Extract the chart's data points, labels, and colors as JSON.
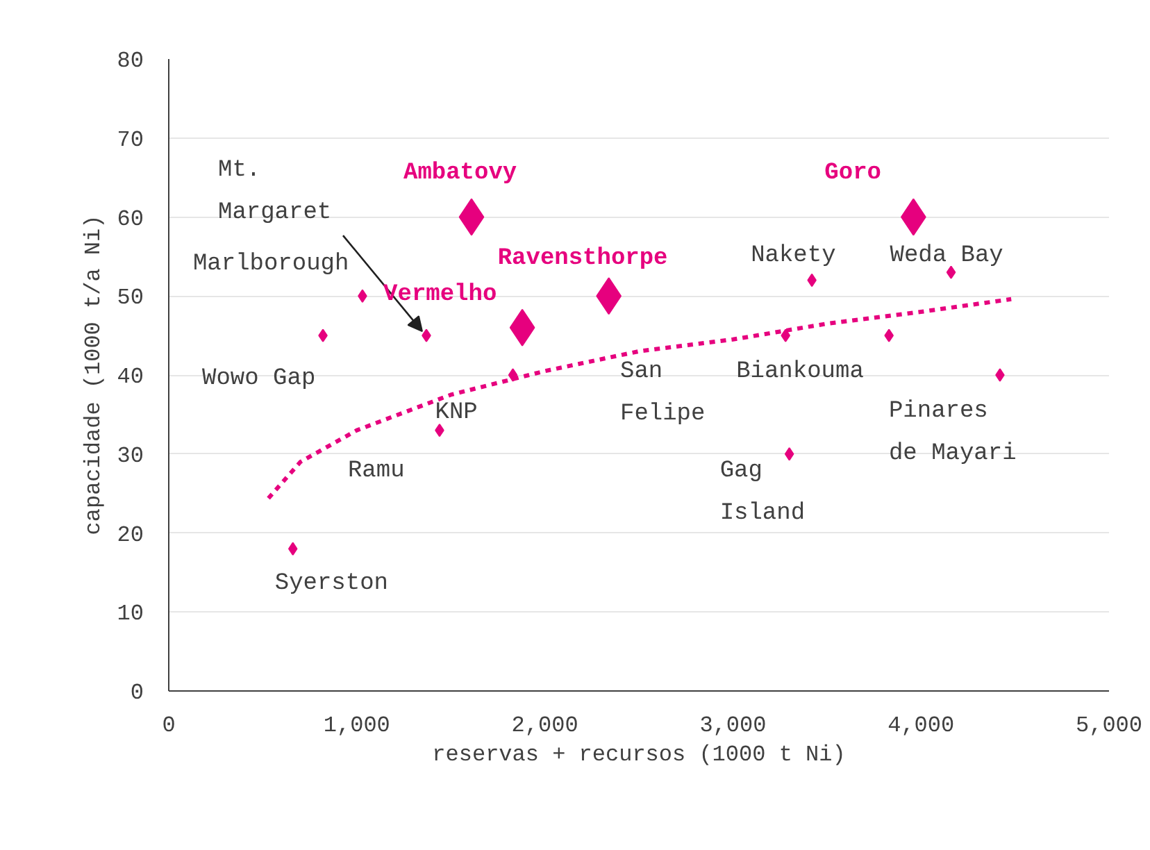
{
  "chart_data": {
    "type": "bubble",
    "xlabel": "reservas + recursos (1000 t Ni)",
    "ylabel": "capacidade (1000 t/a Ni)",
    "xlim": [
      0,
      5000
    ],
    "xticks": [
      0,
      {
        "value": 1000,
        "label": "1,000"
      },
      {
        "value": 2000,
        "label": "2,000"
      },
      {
        "value": 3000,
        "label": "3,000"
      },
      {
        "value": 4000,
        "label": "4,000"
      },
      {
        "value": 5000,
        "label": "5,000"
      }
    ],
    "ylim": [
      0,
      80
    ],
    "yticks": [
      0,
      10,
      20,
      30,
      40,
      50,
      60,
      70,
      80
    ],
    "grid": "y",
    "series": [
      {
        "color": "#e6007e",
        "marker": "diamond",
        "x": [
          820,
          1030,
          1370,
          1830,
          1440,
          660,
          3420,
          4160,
          3280,
          3830,
          4420,
          3300
        ],
        "values": [
          45,
          50,
          45,
          40,
          33,
          18,
          52,
          53,
          45,
          45,
          40,
          30
        ],
        "sizes": [
          0.11,
          0.11,
          0.11,
          0.11,
          0.11,
          0.11,
          0.11,
          0.11,
          0.11,
          0.11,
          0.11,
          0.11
        ]
      },
      {
        "color": "#e6007e",
        "marker": "diamond",
        "x": [
          1610,
          1880,
          2340,
          3960
        ],
        "values": [
          60,
          46,
          50,
          60
        ],
        "sizes": [
          1,
          1,
          1,
          1
        ]
      },
      {
        "type": "line",
        "color": "#e6007e",
        "line_style": "dotted",
        "x": [
          530,
          700,
          1000,
          1500,
          2000,
          2500,
          3000,
          3500,
          4000,
          4480
        ],
        "values": [
          24.4,
          29,
          33,
          37.5,
          40.5,
          43,
          44.5,
          46.5,
          48,
          49.6
        ]
      }
    ],
    "annotations": [
      {
        "text": "Mt.\nMargaret",
        "x": 1370,
        "y": 45
      },
      {
        "text": "Ambatovy",
        "x": 1610,
        "y": 60
      },
      {
        "text": "Marlborough",
        "x": 1030,
        "y": 50
      },
      {
        "text": "Vermelho",
        "x": 1880,
        "y": 46
      },
      {
        "text": "Ravensthorpe",
        "x": 2340,
        "y": 50
      },
      {
        "text": "Wowo Gap",
        "x": 820,
        "y": 45
      },
      {
        "text": "KNP",
        "x": 1830,
        "y": 40
      },
      {
        "text": "Ramu",
        "x": 1440,
        "y": 33
      },
      {
        "text": "Syerston",
        "x": 660,
        "y": 18
      },
      "San\nFelipe",
      {
        "text": "Goro",
        "x": 3960,
        "y": 60
      },
      {
        "text": "Nakety",
        "x": 3420,
        "y": 52
      },
      {
        "text": "Weda Bay",
        "x": 4160,
        "y": 53
      },
      {
        "text": "Biankouma",
        "x": 3830,
        "y": 45
      },
      {
        "text": "Gag\nIsland",
        "x": 3300,
        "y": 30
      },
      {
        "text": "Pinares\nde Mayari",
        "x": 4420,
        "y": 40
      }
    ]
  }
}
